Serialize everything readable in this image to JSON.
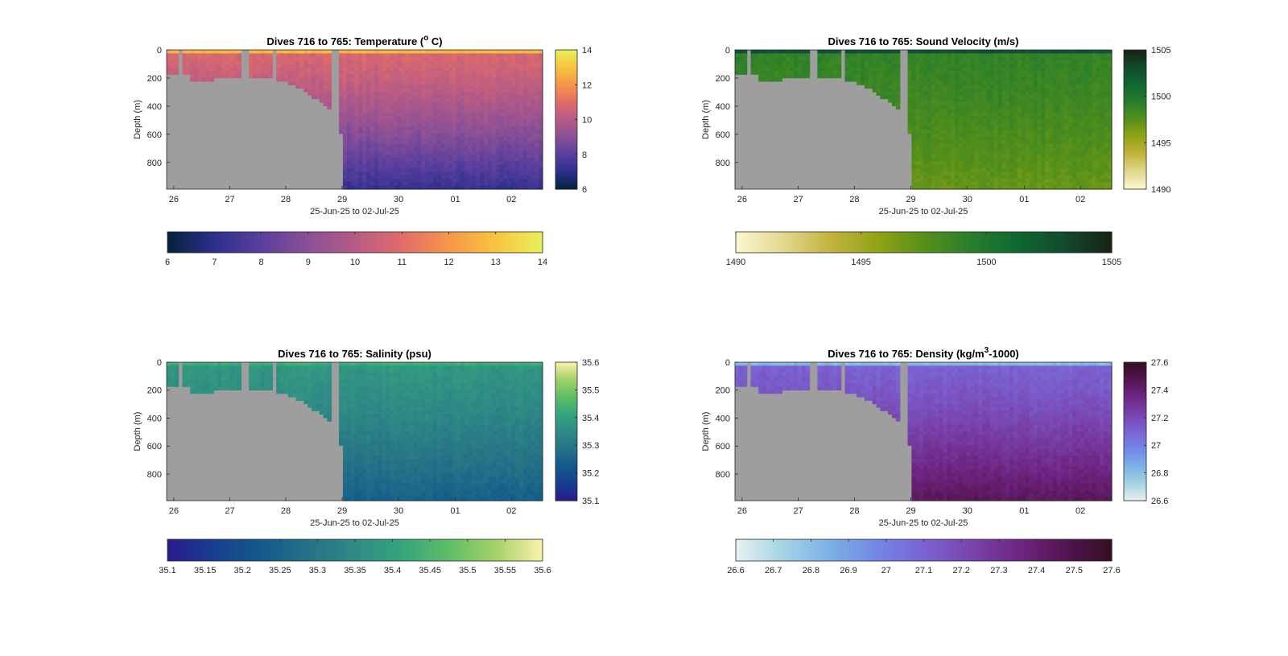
{
  "chart_data": [
    {
      "type": "heatmap",
      "title_main": "Dives 716 to 765: Temperature (",
      "title_sup": "o",
      "title_end": " C)",
      "xlabel": "25-Jun-25 to 02-Jul-25",
      "ylabel": "Depth (m)",
      "x_ticks": [
        "26",
        "27",
        "28",
        "29",
        "30",
        "01",
        "02"
      ],
      "y_ticks": [
        "0",
        "200",
        "400",
        "600",
        "800"
      ],
      "ylim": [
        0,
        990
      ],
      "y_reversed": true,
      "colormap": "thermal",
      "clim": [
        6,
        14
      ],
      "colorbar_ticks": [
        "6",
        "8",
        "10",
        "12",
        "14"
      ],
      "h_colorbar_ticks": [
        "6",
        "7",
        "8",
        "9",
        "10",
        "11",
        "12",
        "13",
        "14"
      ],
      "surface_value": 13.2,
      "mid_value": 10.8,
      "deep_value": 7.2
    },
    {
      "type": "heatmap",
      "title_main": "Dives 716 to 765: Sound Velocity (m/s)",
      "title_sup": "",
      "title_end": "",
      "xlabel": "25-Jun-25 to 02-Jul-25",
      "ylabel": "Depth (m)",
      "x_ticks": [
        "26",
        "27",
        "28",
        "29",
        "30",
        "01",
        "02"
      ],
      "y_ticks": [
        "0",
        "200",
        "400",
        "600",
        "800"
      ],
      "ylim": [
        0,
        990
      ],
      "y_reversed": true,
      "colormap": "speed",
      "clim": [
        1490,
        1505
      ],
      "colorbar_ticks": [
        "1490",
        "1495",
        "1500",
        "1505"
      ],
      "h_colorbar_ticks": [
        "1490",
        "1495",
        "1500",
        "1505"
      ],
      "surface_value": 1503.5,
      "mid_value": 1499.0,
      "deep_value": 1497.0
    },
    {
      "type": "heatmap",
      "title_main": "Dives 716 to 765: Salinity (psu)",
      "title_sup": "",
      "title_end": "",
      "xlabel": "25-Jun-25 to 02-Jul-25",
      "ylabel": "Depth (m)",
      "x_ticks": [
        "26",
        "27",
        "28",
        "29",
        "30",
        "01",
        "02"
      ],
      "y_ticks": [
        "0",
        "200",
        "400",
        "600",
        "800"
      ],
      "ylim": [
        0,
        990
      ],
      "y_reversed": true,
      "colormap": "haline",
      "clim": [
        35.1,
        35.6
      ],
      "colorbar_ticks": [
        "35.1",
        "35.2",
        "35.3",
        "35.4",
        "35.5",
        "35.6"
      ],
      "h_colorbar_ticks": [
        "35.1",
        "35.15",
        "35.2",
        "35.25",
        "35.3",
        "35.35",
        "35.4",
        "35.45",
        "35.5",
        "35.55",
        "35.6"
      ],
      "surface_value": 35.44,
      "mid_value": 35.38,
      "deep_value": 35.24
    },
    {
      "type": "heatmap",
      "title_main": "Dives 716 to 765: Density (kg/m",
      "title_sup": "3",
      "title_end": "-1000)",
      "xlabel": "25-Jun-25 to 02-Jul-25",
      "ylabel": "Depth (m)",
      "x_ticks": [
        "26",
        "27",
        "28",
        "29",
        "30",
        "01",
        "02"
      ],
      "y_ticks": [
        "0",
        "200",
        "400",
        "600",
        "800"
      ],
      "ylim": [
        0,
        990
      ],
      "y_reversed": true,
      "colormap": "dense",
      "clim": [
        26.6,
        27.6
      ],
      "colorbar_ticks": [
        "26.6",
        "26.8",
        "27",
        "27.2",
        "27.4",
        "27.6"
      ],
      "h_colorbar_ticks": [
        "26.6",
        "26.7",
        "26.8",
        "26.9",
        "27",
        "27.1",
        "27.2",
        "27.3",
        "27.4",
        "27.5",
        "27.6"
      ],
      "surface_value": 26.75,
      "mid_value": 27.1,
      "deep_value": 27.45
    }
  ],
  "colors": {
    "no_data": "#9e9e9e",
    "axes": "#262626",
    "title": "#000000"
  }
}
